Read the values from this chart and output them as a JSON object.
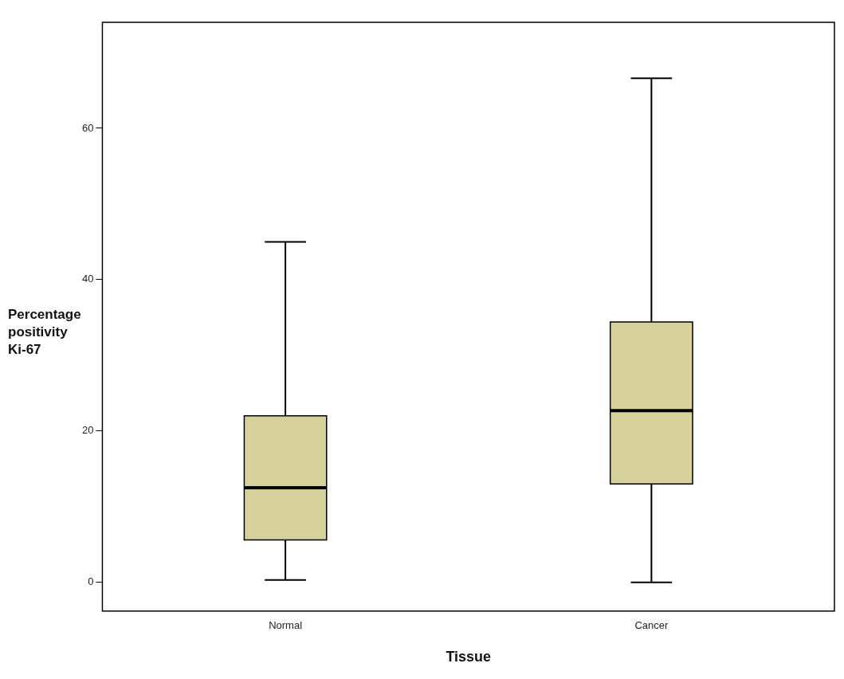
{
  "chart_data": {
    "type": "box",
    "xlabel": "Tissue",
    "ylabel": "Percentage positivity Ki-67",
    "categories": [
      "Normal",
      "Cancer"
    ],
    "color": "#d6d09a",
    "boxes": [
      {
        "low": 0.3,
        "q1": 5.6,
        "median": 12.5,
        "q3": 22,
        "high": 45
      },
      {
        "low": 0,
        "q1": 13,
        "median": 22.7,
        "q3": 34.4,
        "high": 66.6
      }
    ],
    "ylim": [
      -3.8,
      74
    ],
    "yticks": [
      0,
      20,
      40,
      60
    ],
    "grid": false,
    "legend": false
  }
}
